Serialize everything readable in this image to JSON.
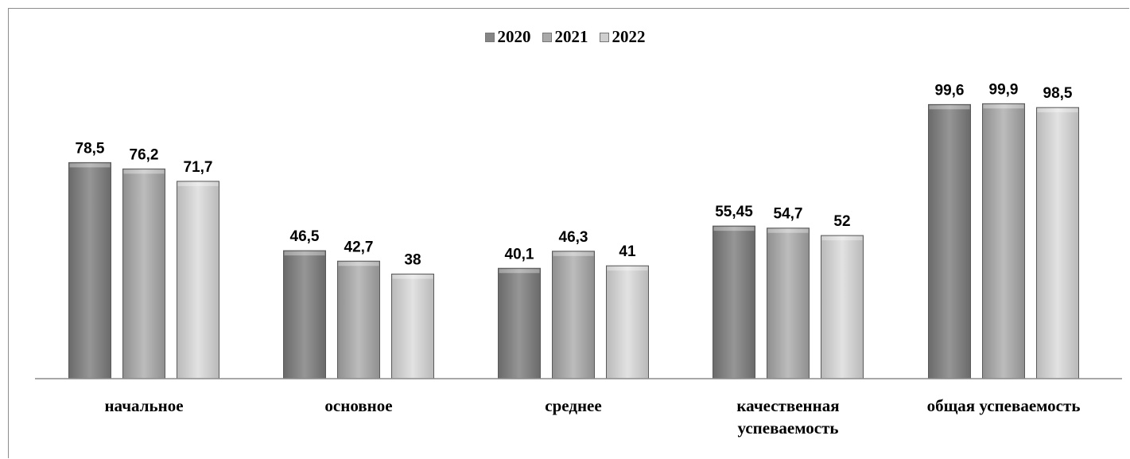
{
  "chart_data": {
    "type": "bar",
    "categories": [
      [
        "начальное"
      ],
      [
        "основное"
      ],
      [
        "среднее"
      ],
      [
        "качественная",
        "успеваемость"
      ],
      [
        "общая успеваемость"
      ]
    ],
    "series": [
      {
        "name": "2020",
        "color": "#858585",
        "values": [
          78.5,
          46.5,
          40.1,
          55.45,
          99.6
        ],
        "labels": [
          "78,5",
          "46,5",
          "40,1",
          "55,45",
          "99,6"
        ]
      },
      {
        "name": "2021",
        "color": "#a9a9a9",
        "values": [
          76.2,
          42.7,
          46.3,
          54.7,
          99.9
        ],
        "labels": [
          "76,2",
          "42,7",
          "46,3",
          "54,7",
          "99,9"
        ]
      },
      {
        "name": "2022",
        "color": "#cfcfcf",
        "values": [
          71.7,
          38,
          41,
          52,
          98.5
        ],
        "labels": [
          "71,7",
          "38",
          "41",
          "52",
          "98,5"
        ]
      }
    ],
    "title": "",
    "xlabel": "",
    "ylabel": "",
    "ylim": [
      0,
      100
    ],
    "grid": false,
    "legend": "top-center"
  }
}
